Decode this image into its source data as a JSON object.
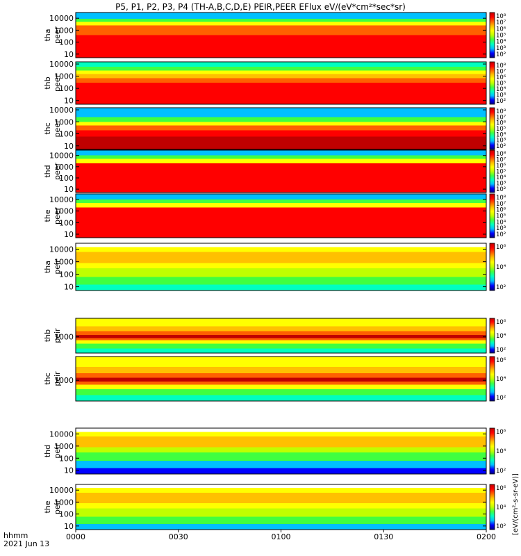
{
  "title": "P5, P1, P2, P3, P4 (TH-A,B,C,D,E) PEIR,PEER EFlux eV/(eV*cm²*sec*sr)",
  "time_axis": {
    "label_line1": "hhmm",
    "label_line2": "2021 Jun 13",
    "ticks": [
      "0000",
      "0030",
      "0100",
      "0130",
      "0200"
    ]
  },
  "colorbar": {
    "side_label": "[eV/(cm²-s-sr-eV)]",
    "ticks_peer": [
      "10²",
      "10³",
      "10⁴",
      "10⁵",
      "10⁶",
      "10⁷",
      "10⁸"
    ],
    "ticks_peir": [
      "10²",
      "10⁴",
      "10⁶"
    ],
    "colors": [
      "#000080",
      "#0000ff",
      "#00c0ff",
      "#00ffc0",
      "#40ff40",
      "#c0ff00",
      "#ffff00",
      "#ffc000",
      "#ff6000",
      "#ff0000",
      "#c00000"
    ]
  },
  "chart_data": [
    {
      "type": "heatmap",
      "panel": "tha_peer",
      "ylabel_1": "tha",
      "ylabel_2": "peer",
      "y_scale": "log",
      "ylim": [
        5,
        30000
      ],
      "y_ticks": [
        "10",
        "100",
        "1000",
        "10000"
      ],
      "x_range": [
        "0000",
        "0200"
      ],
      "color_bands": [
        {
          "from": 5,
          "to": 400,
          "color": "#ff0000"
        },
        {
          "from": 400,
          "to": 2500,
          "color": "#ff6000"
        },
        {
          "from": 2500,
          "to": 5000,
          "color": "#ffff00"
        },
        {
          "from": 5000,
          "to": 9000,
          "color": "#40ff40"
        },
        {
          "from": 9000,
          "to": 30000,
          "color": "#00c0ff"
        }
      ]
    },
    {
      "type": "heatmap",
      "panel": "thb_peer",
      "ylabel_1": "thb",
      "ylabel_2": "peer",
      "y_scale": "log",
      "ylim": [
        5,
        15000
      ],
      "y_ticks": [
        "10",
        "100",
        "1000",
        "10000"
      ],
      "x_range": [
        "0000",
        "0200"
      ],
      "color_bands": [
        {
          "from": 5,
          "to": 300,
          "color": "#ff0000"
        },
        {
          "from": 300,
          "to": 700,
          "color": "#ff6000"
        },
        {
          "from": 700,
          "to": 1500,
          "color": "#ffc000"
        },
        {
          "from": 1500,
          "to": 3000,
          "color": "#ffff00"
        },
        {
          "from": 3000,
          "to": 6000,
          "color": "#40ff40"
        },
        {
          "from": 6000,
          "to": 15000,
          "color": "#00ffc0"
        }
      ]
    },
    {
      "type": "heatmap",
      "panel": "thc_peer",
      "ylabel_1": "thc",
      "ylabel_2": "peer",
      "y_scale": "log",
      "ylim": [
        5,
        15000
      ],
      "y_ticks": [
        "10",
        "100",
        "1000",
        "10000"
      ],
      "x_range": [
        "0000",
        "0200"
      ],
      "color_bands": [
        {
          "from": 5,
          "to": 60,
          "color": "#c00000"
        },
        {
          "from": 60,
          "to": 200,
          "color": "#ff0000"
        },
        {
          "from": 200,
          "to": 500,
          "color": "#ff6000"
        },
        {
          "from": 500,
          "to": 1000,
          "color": "#ffff00"
        },
        {
          "from": 1000,
          "to": 2500,
          "color": "#40ff40"
        },
        {
          "from": 2500,
          "to": 15000,
          "color": "#00c0ff"
        }
      ]
    },
    {
      "type": "heatmap",
      "panel": "thd_peer",
      "ylabel_1": "thd",
      "ylabel_2": "peer",
      "y_scale": "log",
      "ylim": [
        5,
        30000
      ],
      "y_ticks": [
        "10",
        "100",
        "1000",
        "10000"
      ],
      "x_range": [
        "0000",
        "0200"
      ],
      "color_bands": [
        {
          "from": 5,
          "to": 2000,
          "color": "#ff0000"
        },
        {
          "from": 2000,
          "to": 5000,
          "color": "#ffff00"
        },
        {
          "from": 5000,
          "to": 10000,
          "color": "#40ff40"
        },
        {
          "from": 10000,
          "to": 30000,
          "color": "#00c0ff"
        }
      ]
    },
    {
      "type": "heatmap",
      "panel": "the_peer",
      "ylabel_1": "the",
      "ylabel_2": "peer",
      "y_scale": "log",
      "ylim": [
        5,
        30000
      ],
      "y_ticks": [
        "10",
        "100",
        "1000",
        "10000"
      ],
      "x_range": [
        "0000",
        "0200"
      ],
      "color_bands": [
        {
          "from": 5,
          "to": 2000,
          "color": "#ff0000"
        },
        {
          "from": 2000,
          "to": 5000,
          "color": "#ffff00"
        },
        {
          "from": 5000,
          "to": 10000,
          "color": "#40ff40"
        },
        {
          "from": 10000,
          "to": 30000,
          "color": "#00c0ff"
        }
      ]
    },
    {
      "type": "heatmap",
      "panel": "tha_peir",
      "ylabel_1": "tha",
      "ylabel_2": "peir",
      "y_scale": "log",
      "ylim": [
        5,
        30000
      ],
      "y_ticks": [
        "10",
        "100",
        "1000",
        "10000"
      ],
      "x_range": [
        "0000",
        "0200"
      ],
      "color_bands": [
        {
          "from": 5,
          "to": 15,
          "color": "#00ffc0"
        },
        {
          "from": 15,
          "to": 60,
          "color": "#40ff40"
        },
        {
          "from": 60,
          "to": 300,
          "color": "#c0ff00"
        },
        {
          "from": 300,
          "to": 800,
          "color": "#ffff00"
        },
        {
          "from": 800,
          "to": 6000,
          "color": "#ffc000"
        },
        {
          "from": 6000,
          "to": 15000,
          "color": "#ffff00"
        },
        {
          "from": 15000,
          "to": 30000,
          "color": "#ffffff"
        }
      ]
    },
    {
      "type": "heatmap",
      "panel": "thb_peir",
      "ylabel_1": "thb",
      "ylabel_2": "peir",
      "y_scale": "log",
      "ylim": [
        40,
        40000
      ],
      "y_ticks": [
        "1000"
      ],
      "x_range": [
        "0000",
        "0200"
      ],
      "color_bands": [
        {
          "from": 40,
          "to": 100,
          "color": "#00ffc0"
        },
        {
          "from": 100,
          "to": 250,
          "color": "#40ff40"
        },
        {
          "from": 250,
          "to": 500,
          "color": "#ffff00"
        },
        {
          "from": 500,
          "to": 800,
          "color": "#ff6000"
        },
        {
          "from": 800,
          "to": 1500,
          "color": "#c00000"
        },
        {
          "from": 1500,
          "to": 3000,
          "color": "#ff6000"
        },
        {
          "from": 3000,
          "to": 8000,
          "color": "#ffc000"
        },
        {
          "from": 8000,
          "to": 40000,
          "color": "#ffff00"
        }
      ]
    },
    {
      "type": "heatmap",
      "panel": "thc_peir",
      "ylabel_1": "thc",
      "ylabel_2": "peir",
      "y_scale": "log",
      "ylim": [
        40,
        40000
      ],
      "y_ticks": [
        "1000"
      ],
      "x_range": [
        "0000",
        "0200"
      ],
      "color_bands": [
        {
          "from": 40,
          "to": 100,
          "color": "#00ffc0"
        },
        {
          "from": 100,
          "to": 250,
          "color": "#40ff40"
        },
        {
          "from": 250,
          "to": 500,
          "color": "#ffff00"
        },
        {
          "from": 500,
          "to": 800,
          "color": "#ff6000"
        },
        {
          "from": 800,
          "to": 1500,
          "color": "#c00000"
        },
        {
          "from": 1500,
          "to": 3000,
          "color": "#ff6000"
        },
        {
          "from": 3000,
          "to": 8000,
          "color": "#ffc000"
        },
        {
          "from": 8000,
          "to": 40000,
          "color": "#ffff00"
        }
      ]
    },
    {
      "type": "heatmap",
      "panel": "thd_peir",
      "ylabel_1": "thd",
      "ylabel_2": "peir",
      "y_scale": "log",
      "ylim": [
        5,
        30000
      ],
      "y_ticks": [
        "10",
        "100",
        "1000",
        "10000"
      ],
      "x_range": [
        "0000",
        "0200"
      ],
      "color_bands": [
        {
          "from": 5,
          "to": 15,
          "color": "#0000ff"
        },
        {
          "from": 15,
          "to": 60,
          "color": "#00c0ff"
        },
        {
          "from": 60,
          "to": 300,
          "color": "#40ff40"
        },
        {
          "from": 300,
          "to": 800,
          "color": "#c0ff00"
        },
        {
          "from": 800,
          "to": 6000,
          "color": "#ffc000"
        },
        {
          "from": 6000,
          "to": 15000,
          "color": "#ffff00"
        },
        {
          "from": 15000,
          "to": 30000,
          "color": "#ffffff"
        }
      ]
    },
    {
      "type": "heatmap",
      "panel": "the_peir",
      "ylabel_1": "the",
      "ylabel_2": "peir",
      "y_scale": "log",
      "ylim": [
        5,
        30000
      ],
      "y_ticks": [
        "10",
        "100",
        "1000",
        "10000"
      ],
      "x_range": [
        "0000",
        "0200"
      ],
      "color_bands": [
        {
          "from": 5,
          "to": 15,
          "color": "#00c0ff"
        },
        {
          "from": 15,
          "to": 60,
          "color": "#40ff40"
        },
        {
          "from": 60,
          "to": 300,
          "color": "#c0ff00"
        },
        {
          "from": 300,
          "to": 800,
          "color": "#ffff00"
        },
        {
          "from": 800,
          "to": 6000,
          "color": "#ffc000"
        },
        {
          "from": 6000,
          "to": 15000,
          "color": "#ffff00"
        },
        {
          "from": 15000,
          "to": 30000,
          "color": "#ffffff"
        }
      ]
    }
  ]
}
